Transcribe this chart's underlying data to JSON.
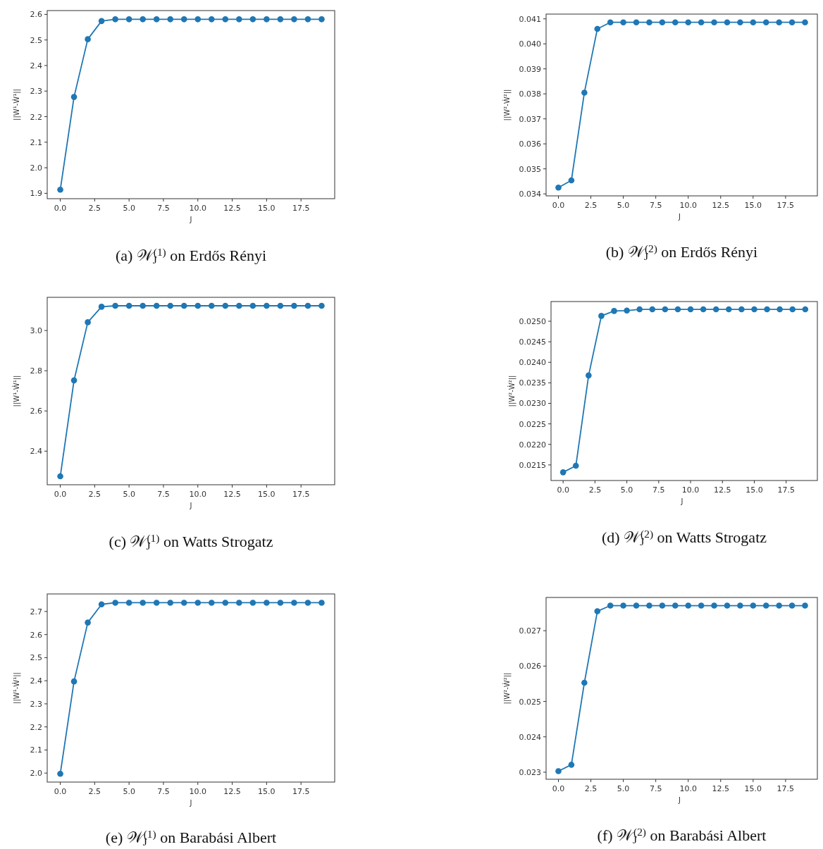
{
  "chart_data": [
    {
      "type": "line",
      "title": "(a) 𝒲$_{J}$$^{(1)}$ on Erdős Rényi",
      "xlabel": "J",
      "ylabel": "||W¹-Ẇ¹||",
      "marker": "circle",
      "line_style": "solid",
      "grid": false,
      "x": [
        0,
        1,
        2,
        3,
        4,
        5,
        6,
        7,
        8,
        9,
        10,
        11,
        12,
        13,
        14,
        15,
        16,
        17,
        18,
        19
      ],
      "xlim": [
        -0.95,
        19.95
      ],
      "xticks": [
        {
          "value": 0,
          "label": "0.0"
        },
        {
          "value": 2.5,
          "label": "2.5"
        },
        {
          "value": 5,
          "label": "5.0"
        },
        {
          "value": 7.5,
          "label": "7.5"
        },
        {
          "value": 10,
          "label": "10.0"
        },
        {
          "value": 12.5,
          "label": "12.5"
        },
        {
          "value": 15,
          "label": "15.0"
        },
        {
          "value": 17.5,
          "label": "17.5"
        }
      ],
      "ylim": [
        1.879,
        2.615
      ],
      "yticks": [
        1.9,
        {
          "value": 2,
          "label": "2.0"
        },
        2.1,
        2.2,
        2.3,
        2.4,
        2.5,
        2.6
      ],
      "series": [
        {
          "color": "#1f77b4",
          "values": [
            1.914,
            2.277,
            2.503,
            2.574,
            2.581,
            2.581,
            2.581,
            2.581,
            2.581,
            2.581,
            2.581,
            2.581,
            2.581,
            2.581,
            2.581,
            2.581,
            2.581,
            2.581,
            2.581,
            2.581
          ]
        }
      ]
    },
    {
      "type": "line",
      "title": "(b) 𝒲$_{J}$$^{(2)}$ on Erdős Rényi",
      "xlabel": "J",
      "ylabel": "||W²-Ẇ²||",
      "marker": "circle",
      "line_style": "solid",
      "grid": false,
      "x": [
        0,
        1,
        2,
        3,
        4,
        5,
        6,
        7,
        8,
        9,
        10,
        11,
        12,
        13,
        14,
        15,
        16,
        17,
        18,
        19
      ],
      "xlim": [
        -0.95,
        19.95
      ],
      "xticks": [
        {
          "value": 0,
          "label": "0.0"
        },
        {
          "value": 2.5,
          "label": "2.5"
        },
        {
          "value": 5,
          "label": "5.0"
        },
        {
          "value": 7.5,
          "label": "7.5"
        },
        {
          "value": 10,
          "label": "10.0"
        },
        {
          "value": 12.5,
          "label": "12.5"
        },
        {
          "value": 15,
          "label": "15.0"
        },
        {
          "value": 17.5,
          "label": "17.5"
        }
      ],
      "ylim": [
        0.03392,
        0.04119
      ],
      "yticks": [
        0.034,
        0.035,
        0.036,
        0.037,
        0.038,
        0.039,
        {
          "value": 0.04,
          "label": "0.040"
        },
        0.041
      ],
      "series": [
        {
          "color": "#1f77b4",
          "values": [
            0.03425,
            0.03454,
            0.03805,
            0.0406,
            0.04086,
            0.04086,
            0.04086,
            0.04086,
            0.04086,
            0.04086,
            0.04086,
            0.04086,
            0.04086,
            0.04086,
            0.04086,
            0.04086,
            0.04086,
            0.04086,
            0.04086,
            0.04086
          ]
        }
      ]
    },
    {
      "type": "line",
      "title": "(c) 𝒲$_{J}$$^{(1)}$ on Watts Strogatz",
      "xlabel": "J",
      "ylabel": "||W¹-Ẇ¹||",
      "marker": "circle",
      "line_style": "solid",
      "grid": false,
      "x": [
        0,
        1,
        2,
        3,
        4,
        5,
        6,
        7,
        8,
        9,
        10,
        11,
        12,
        13,
        14,
        15,
        16,
        17,
        18,
        19
      ],
      "xlim": [
        -0.95,
        19.95
      ],
      "xticks": [
        {
          "value": 0,
          "label": "0.0"
        },
        {
          "value": 2.5,
          "label": "2.5"
        },
        {
          "value": 5,
          "label": "5.0"
        },
        {
          "value": 7.5,
          "label": "7.5"
        },
        {
          "value": 10,
          "label": "10.0"
        },
        {
          "value": 12.5,
          "label": "12.5"
        },
        {
          "value": 15,
          "label": "15.0"
        },
        {
          "value": 17.5,
          "label": "17.5"
        }
      ],
      "ylim": [
        2.233,
        3.165
      ],
      "yticks": [
        2.4,
        2.6,
        2.8,
        {
          "value": 3,
          "label": "3.0"
        }
      ],
      "series": [
        {
          "color": "#1f77b4",
          "values": [
            2.275,
            2.752,
            3.041,
            3.118,
            3.123,
            3.123,
            3.123,
            3.123,
            3.123,
            3.123,
            3.123,
            3.123,
            3.123,
            3.123,
            3.123,
            3.123,
            3.123,
            3.123,
            3.123,
            3.123
          ]
        }
      ]
    },
    {
      "type": "line",
      "title": "(d) 𝒲$_{J}$$^{(2)}$ on Watts Strogatz",
      "xlabel": "J",
      "ylabel": "||W²-Ẇ²||",
      "marker": "circle",
      "line_style": "solid",
      "grid": false,
      "x": [
        0,
        1,
        2,
        3,
        4,
        5,
        6,
        7,
        8,
        9,
        10,
        11,
        12,
        13,
        14,
        15,
        16,
        17,
        18,
        19
      ],
      "xlim": [
        -0.95,
        19.95
      ],
      "xticks": [
        {
          "value": 0,
          "label": "0.0"
        },
        {
          "value": 2.5,
          "label": "2.5"
        },
        {
          "value": 5,
          "label": "5.0"
        },
        {
          "value": 7.5,
          "label": "7.5"
        },
        {
          "value": 10,
          "label": "10.0"
        },
        {
          "value": 12.5,
          "label": "12.5"
        },
        {
          "value": 15,
          "label": "15.0"
        },
        {
          "value": 17.5,
          "label": "17.5"
        }
      ],
      "ylim": [
        0.02112,
        0.02548
      ],
      "yticks": [
        0.0215,
        {
          "value": 0.022,
          "label": "0.0220"
        },
        0.0225,
        {
          "value": 0.023,
          "label": "0.0230"
        },
        0.0235,
        {
          "value": 0.024,
          "label": "0.0240"
        },
        0.0245,
        {
          "value": 0.025,
          "label": "0.0250"
        }
      ],
      "series": [
        {
          "color": "#1f77b4",
          "values": [
            0.02132,
            0.02148,
            0.02368,
            0.02513,
            0.02525,
            0.02526,
            0.02529,
            0.02529,
            0.02529,
            0.02529,
            0.02529,
            0.02529,
            0.02529,
            0.02529,
            0.02529,
            0.02529,
            0.02529,
            0.02529,
            0.02529,
            0.02529
          ]
        }
      ]
    },
    {
      "type": "line",
      "title": "(e) 𝒲$_{J}$$^{(1)}$ on Barabási Albert",
      "xlabel": "J",
      "ylabel": "||W¹-Ẇ¹||",
      "marker": "circle",
      "line_style": "solid",
      "grid": false,
      "x": [
        0,
        1,
        2,
        3,
        4,
        5,
        6,
        7,
        8,
        9,
        10,
        11,
        12,
        13,
        14,
        15,
        16,
        17,
        18,
        19
      ],
      "xlim": [
        -0.95,
        19.95
      ],
      "xticks": [
        {
          "value": 0,
          "label": "0.0"
        },
        {
          "value": 2.5,
          "label": "2.5"
        },
        {
          "value": 5,
          "label": "5.0"
        },
        {
          "value": 7.5,
          "label": "7.5"
        },
        {
          "value": 10,
          "label": "10.0"
        },
        {
          "value": 12.5,
          "label": "12.5"
        },
        {
          "value": 15,
          "label": "15.0"
        },
        {
          "value": 17.5,
          "label": "17.5"
        }
      ],
      "ylim": [
        1.961,
        2.776
      ],
      "yticks": [
        {
          "value": 2,
          "label": "2.0"
        },
        2.1,
        2.2,
        2.3,
        2.4,
        2.5,
        2.6,
        2.7
      ],
      "series": [
        {
          "color": "#1f77b4",
          "values": [
            1.997,
            2.397,
            2.652,
            2.731,
            2.738,
            2.738,
            2.738,
            2.738,
            2.738,
            2.738,
            2.738,
            2.738,
            2.738,
            2.738,
            2.738,
            2.738,
            2.738,
            2.738,
            2.738,
            2.738
          ]
        }
      ]
    },
    {
      "type": "line",
      "title": "(f) 𝒲$_{J}$$^{(2)}$ on Barabási Albert",
      "xlabel": "J",
      "ylabel": "||W²-Ẇ²||",
      "marker": "circle",
      "line_style": "solid",
      "grid": false,
      "x": [
        0,
        1,
        2,
        3,
        4,
        5,
        6,
        7,
        8,
        9,
        10,
        11,
        12,
        13,
        14,
        15,
        16,
        17,
        18,
        19
      ],
      "xlim": [
        -0.95,
        19.95
      ],
      "xticks": [
        {
          "value": 0,
          "label": "0.0"
        },
        {
          "value": 2.5,
          "label": "2.5"
        },
        {
          "value": 5,
          "label": "5.0"
        },
        {
          "value": 7.5,
          "label": "7.5"
        },
        {
          "value": 10,
          "label": "10.0"
        },
        {
          "value": 12.5,
          "label": "12.5"
        },
        {
          "value": 15,
          "label": "15.0"
        },
        {
          "value": 17.5,
          "label": "17.5"
        }
      ],
      "ylim": [
        0.0228,
        0.02794
      ],
      "yticks": [
        0.023,
        0.024,
        0.025,
        0.026,
        0.027
      ],
      "series": [
        {
          "color": "#1f77b4",
          "values": [
            0.02303,
            0.02321,
            0.02553,
            0.02755,
            0.02771,
            0.02771,
            0.02771,
            0.02771,
            0.02771,
            0.02771,
            0.02771,
            0.02771,
            0.02771,
            0.02771,
            0.02771,
            0.02771,
            0.02771,
            0.02771,
            0.02771,
            0.02771
          ]
        }
      ]
    }
  ]
}
